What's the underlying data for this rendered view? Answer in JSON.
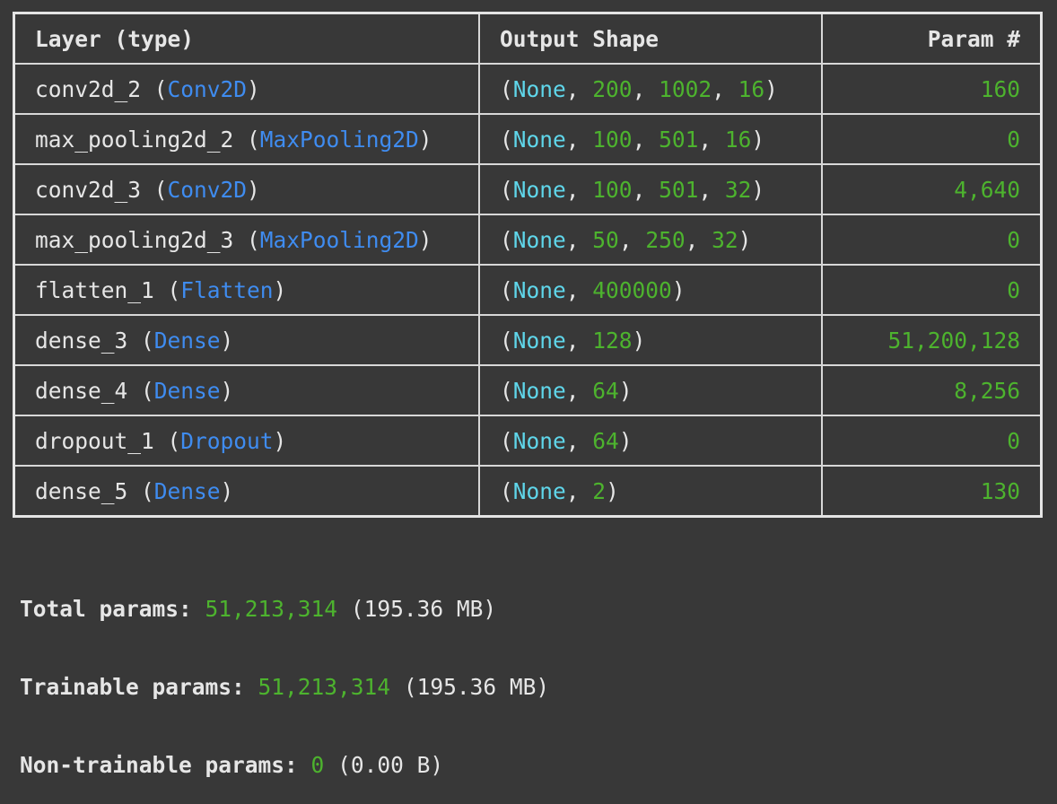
{
  "headers": {
    "layer": "Layer (type)",
    "output": "Output Shape",
    "params": "Param #"
  },
  "rows": [
    {
      "name": "conv2d_2",
      "type": "Conv2D",
      "shape": [
        "None",
        "200",
        "1002",
        "16"
      ],
      "params": "160"
    },
    {
      "name": "max_pooling2d_2",
      "type": "MaxPooling2D",
      "shape": [
        "None",
        "100",
        "501",
        "16"
      ],
      "params": "0"
    },
    {
      "name": "conv2d_3",
      "type": "Conv2D",
      "shape": [
        "None",
        "100",
        "501",
        "32"
      ],
      "params": "4,640"
    },
    {
      "name": "max_pooling2d_3",
      "type": "MaxPooling2D",
      "shape": [
        "None",
        "50",
        "250",
        "32"
      ],
      "params": "0"
    },
    {
      "name": "flatten_1",
      "type": "Flatten",
      "shape": [
        "None",
        "400000"
      ],
      "params": "0"
    },
    {
      "name": "dense_3",
      "type": "Dense",
      "shape": [
        "None",
        "128"
      ],
      "params": "51,200,128"
    },
    {
      "name": "dense_4",
      "type": "Dense",
      "shape": [
        "None",
        "64"
      ],
      "params": "8,256"
    },
    {
      "name": "dropout_1",
      "type": "Dropout",
      "shape": [
        "None",
        "64"
      ],
      "params": "0"
    },
    {
      "name": "dense_5",
      "type": "Dense",
      "shape": [
        "None",
        "2"
      ],
      "params": "130"
    }
  ],
  "summary": {
    "total": {
      "label": "Total params:",
      "value": "51,213,314",
      "size": "(195.36 MB)"
    },
    "trainable": {
      "label": "Trainable params:",
      "value": "51,213,314",
      "size": "(195.36 MB)"
    },
    "non_trainable": {
      "label": "Non-trainable params:",
      "value": "0",
      "size": "(0.00 B)"
    }
  },
  "colors": {
    "background": "#383838",
    "type": "#3f8cf0",
    "none": "#5fd6ea",
    "number": "#4db32e"
  }
}
